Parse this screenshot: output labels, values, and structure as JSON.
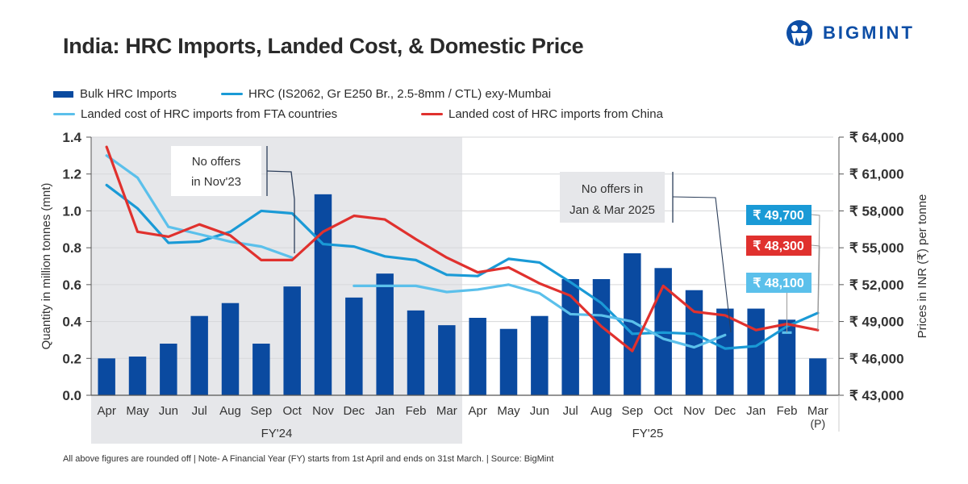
{
  "header": {
    "title": "India: HRC Imports, Landed Cost, & Domestic Price",
    "logo_text": "BIGMINT"
  },
  "legend": [
    {
      "label": "Bulk HRC Imports",
      "type": "bar",
      "color": "#0a4aa0"
    },
    {
      "label": "HRC (IS2062, Gr E250 Br., 2.5-8mm / CTL) exy-Mumbai",
      "type": "line",
      "color": "#1a9ad6"
    },
    {
      "label": "Landed cost of HRC imports from FTA countries",
      "type": "line",
      "color": "#5bc0eb"
    },
    {
      "label": "Landed cost of HRC imports from China",
      "type": "line",
      "color": "#e0312e"
    }
  ],
  "footnote": "All above figures are rounded off | Note- A Financial Year (FY) starts from 1st April and ends on 31st March. | Source: BigMint",
  "chart_data": {
    "type": "bar+line",
    "title": "India: HRC Imports, Landed Cost, & Domestic Price",
    "xlabel": "",
    "ylabel": "Quantity in million tonnes (mnt)",
    "y2label": "Prices in INR (₹) per tonne",
    "ylim": [
      0,
      1.4
    ],
    "y2lim": [
      43000,
      64000
    ],
    "yticks": [
      "0.0",
      "0.2",
      "0.4",
      "0.6",
      "0.8",
      "1.0",
      "1.2",
      "1.4"
    ],
    "y2ticks": [
      "₹ 43,000",
      "₹ 46,000",
      "₹ 49,000",
      "₹ 52,000",
      "₹ 55,000",
      "₹ 58,000",
      "₹ 61,000",
      "₹ 64,000"
    ],
    "grid": true,
    "legend_position": "top",
    "categories": [
      "Apr",
      "May",
      "Jun",
      "Jul",
      "Aug",
      "Sep",
      "Oct",
      "Nov",
      "Dec",
      "Jan",
      "Feb",
      "Mar",
      "Apr",
      "May",
      "Jun",
      "Jul",
      "Aug",
      "Sep",
      "Oct",
      "Nov",
      "Dec",
      "Jan",
      "Feb",
      "Mar"
    ],
    "last_category_suffix": "(P)",
    "groups": [
      {
        "label": "FY'24",
        "start": 0,
        "end": 11,
        "shaded": true
      },
      {
        "label": "FY'25",
        "start": 12,
        "end": 23,
        "shaded": false
      }
    ],
    "series": [
      {
        "name": "Bulk HRC Imports",
        "type": "bar",
        "axis": "left",
        "color": "#0a4aa0",
        "values": [
          0.2,
          0.21,
          0.28,
          0.43,
          0.5,
          0.28,
          0.59,
          1.09,
          0.53,
          0.66,
          0.46,
          0.38,
          0.42,
          0.36,
          0.43,
          0.63,
          0.63,
          0.77,
          0.69,
          0.57,
          0.47,
          0.47,
          0.41,
          0.2
        ]
      },
      {
        "name": "HRC (IS2062, Gr E250 Br., 2.5-8mm / CTL) exy-Mumbai",
        "type": "line",
        "axis": "right",
        "color": "#1a9ad6",
        "values": [
          60100,
          58200,
          55400,
          55500,
          56300,
          58000,
          57800,
          55300,
          55100,
          54300,
          54000,
          52800,
          52700,
          54100,
          53800,
          52200,
          50500,
          48000,
          48100,
          48000,
          46800,
          47000,
          48600,
          49700
        ]
      },
      {
        "name": "Landed cost of HRC imports from FTA countries",
        "type": "line",
        "axis": "right",
        "color": "#5bc0eb",
        "values": [
          62500,
          60700,
          56700,
          56100,
          55500,
          55100,
          54200,
          null,
          51900,
          51900,
          51900,
          51400,
          51600,
          52000,
          51300,
          49600,
          49500,
          49000,
          47600,
          46900,
          47900,
          null,
          48100,
          null
        ]
      },
      {
        "name": "Landed cost of HRC imports from China",
        "type": "line",
        "axis": "right",
        "color": "#e0312e",
        "values": [
          63200,
          56300,
          55900,
          56900,
          56000,
          54000,
          54000,
          56300,
          57600,
          57300,
          55700,
          54200,
          53000,
          53400,
          52100,
          51100,
          48600,
          46600,
          51900,
          49800,
          49500,
          48300,
          48800,
          48300
        ]
      }
    ],
    "annotations": [
      {
        "text": [
          "No offers",
          "in Nov'23"
        ],
        "target_index": 7,
        "style": "white-box"
      },
      {
        "text": [
          "No offers in",
          "Jan & Mar 2025"
        ],
        "target_index": 21,
        "style": "grey-box"
      }
    ],
    "value_labels": [
      {
        "text": "₹ 49,700",
        "series": 1,
        "index": 23,
        "color": "#1a9ad6"
      },
      {
        "text": "₹ 48,300",
        "series": 3,
        "index": 23,
        "color": "#e0312e"
      },
      {
        "text": "₹ 48,100",
        "series": 2,
        "index": 22,
        "color": "#5bc0eb"
      }
    ]
  }
}
